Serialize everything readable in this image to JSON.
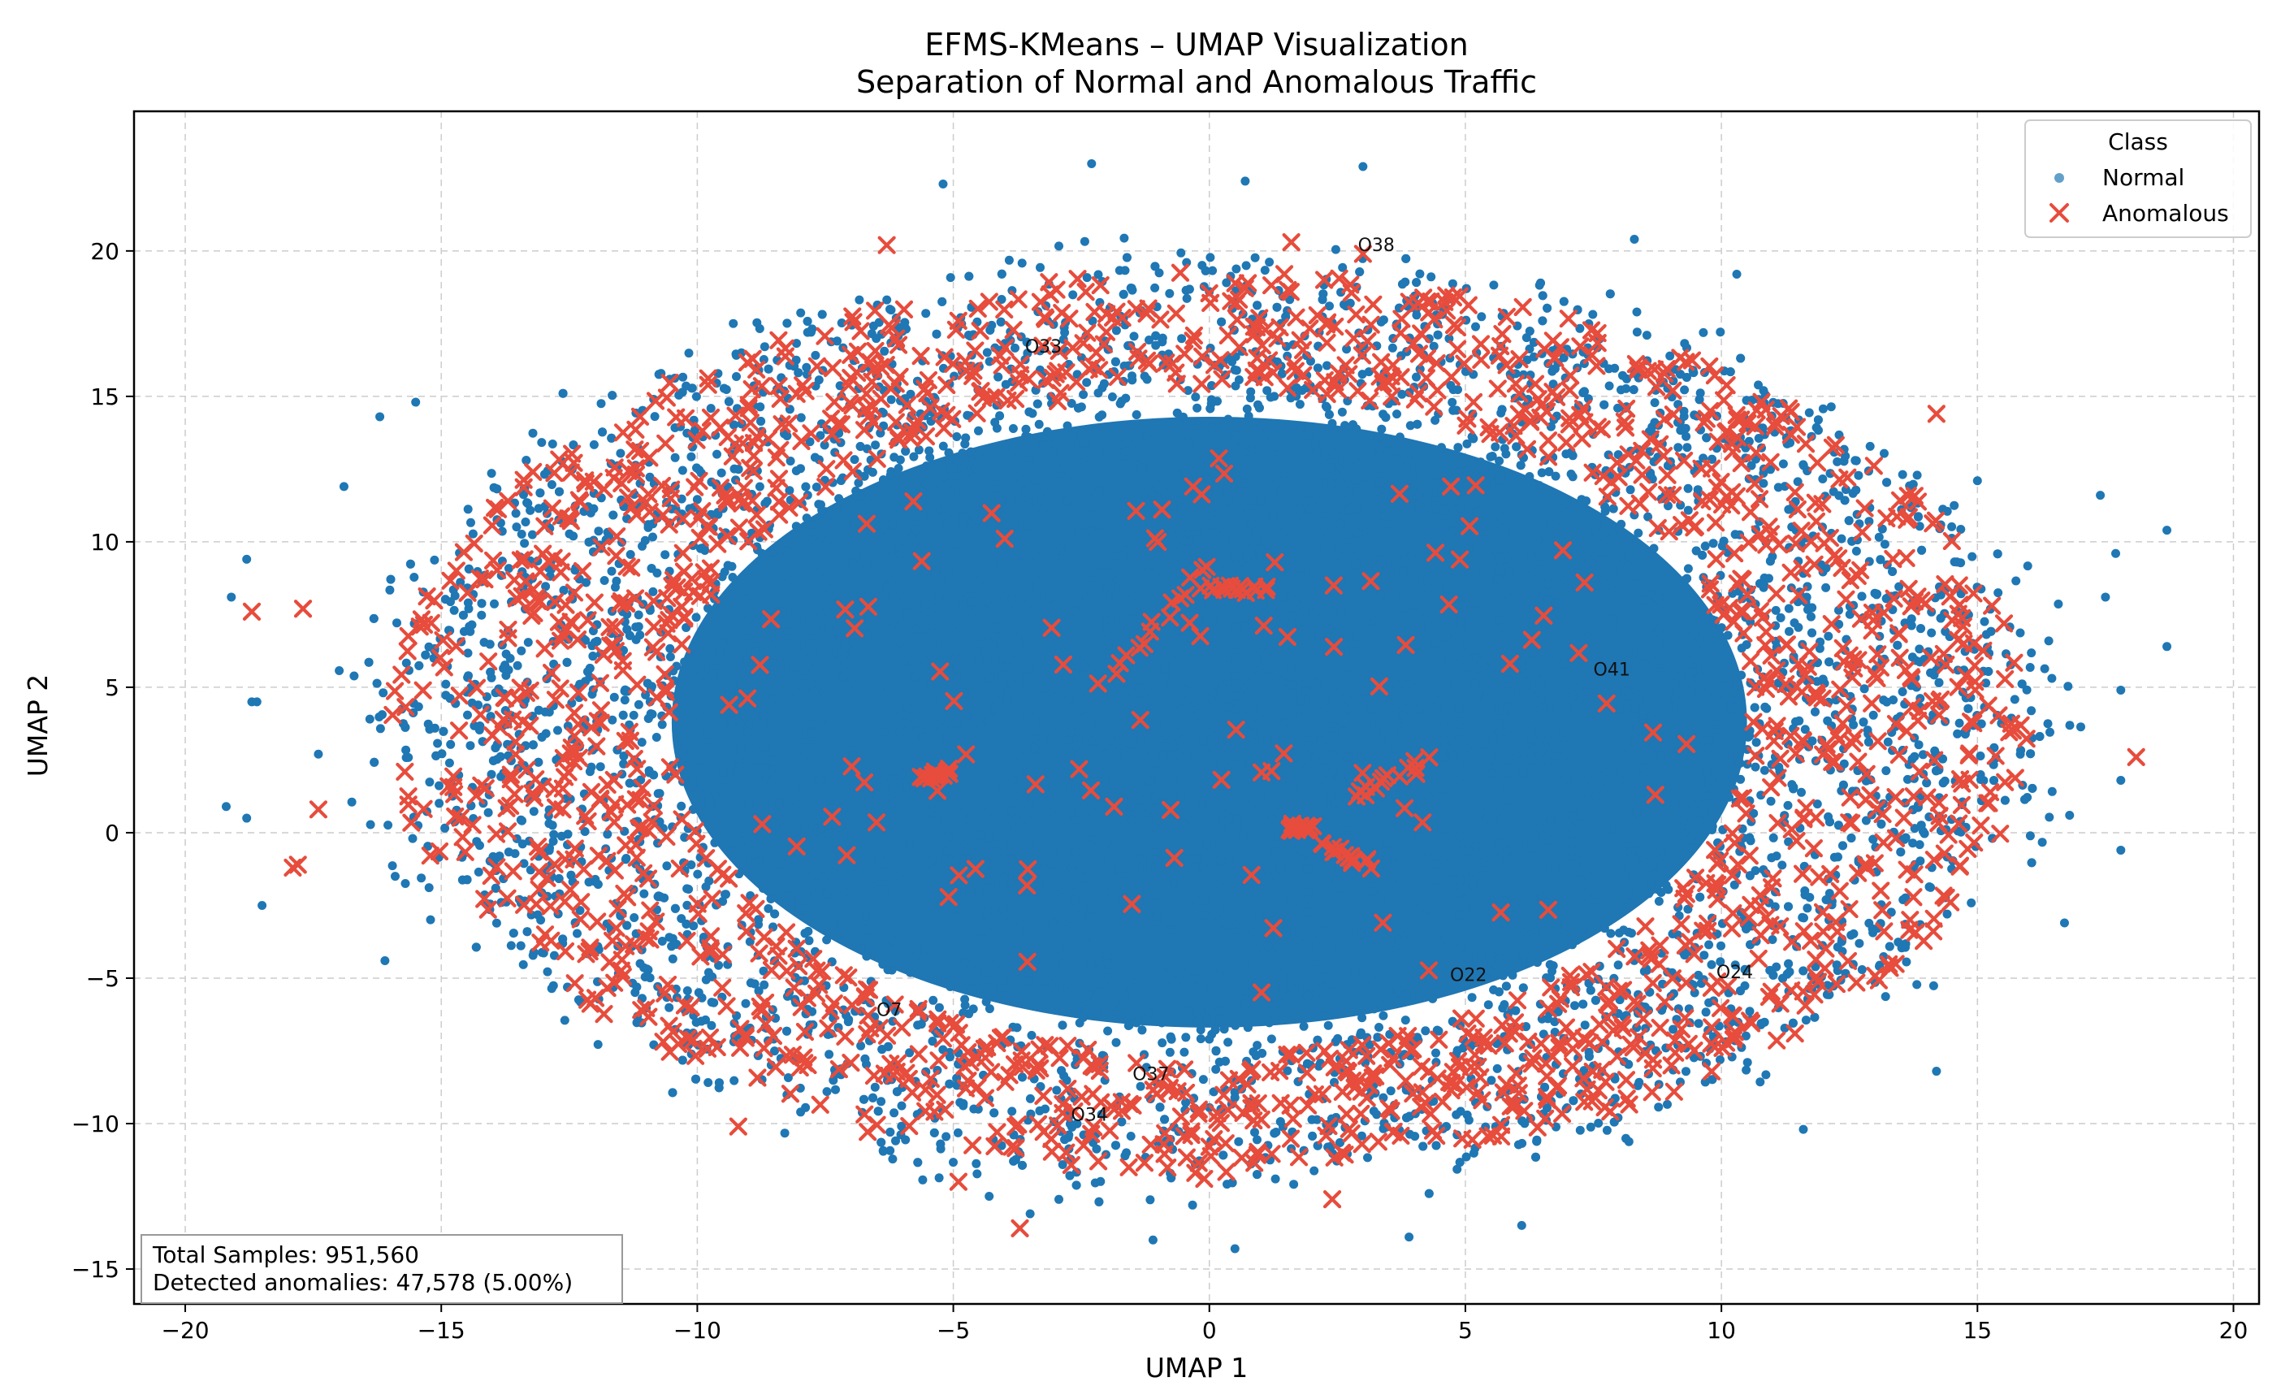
{
  "chart_data": {
    "type": "scatter",
    "title": "EFMS-KMeans – UMAP Visualization",
    "subtitle": "Separation of Normal and Anomalous Traffic",
    "xlabel": "UMAP 1",
    "ylabel": "UMAP 2",
    "xlim": [
      -21,
      20.5
    ],
    "ylim": [
      -16.2,
      24.8
    ],
    "x_ticks": [
      -20,
      -15,
      -10,
      -5,
      0,
      5,
      10,
      15,
      20
    ],
    "y_ticks": [
      -15,
      -10,
      -5,
      0,
      5,
      10,
      15,
      20
    ],
    "grid": true,
    "legend": {
      "title": "Class",
      "placement": "top-right",
      "entries": [
        {
          "name": "Normal",
          "marker": "dot",
          "color": "#1f77b4"
        },
        {
          "name": "Anomalous",
          "marker": "x",
          "color": "#e74c3c"
        }
      ]
    },
    "series": [
      {
        "name": "Normal",
        "color": "#1f77b4",
        "distribution": {
          "center": [
            0,
            3.8
          ],
          "rx": 16.5,
          "ry": 16.2,
          "dense_rx": 10.5,
          "dense_ry": 10.5
        },
        "outliers": [
          [
            -19.1,
            8.1
          ],
          [
            -18.8,
            9.4
          ],
          [
            -18.7,
            4.5
          ],
          [
            -18.6,
            4.5
          ],
          [
            -19.2,
            0.9
          ],
          [
            -18.8,
            0.5
          ],
          [
            -18.5,
            -2.5
          ],
          [
            -17.4,
            2.7
          ],
          [
            -16.9,
            11.9
          ],
          [
            -16.2,
            14.3
          ],
          [
            -15.5,
            14.8
          ],
          [
            -15.9,
            -1.5
          ],
          [
            -16.1,
            -4.4
          ],
          [
            -5.2,
            22.3
          ],
          [
            -2.3,
            23.0
          ],
          [
            0.7,
            22.4
          ],
          [
            3.0,
            22.9
          ],
          [
            8.3,
            20.4
          ],
          [
            10.3,
            19.2
          ],
          [
            15.0,
            12.1
          ],
          [
            17.4,
            11.6
          ],
          [
            17.7,
            9.6
          ],
          [
            17.5,
            8.1
          ],
          [
            17.8,
            4.9
          ],
          [
            18.7,
            10.4
          ],
          [
            18.7,
            6.4
          ],
          [
            17.8,
            1.8
          ],
          [
            16.8,
            0.6
          ],
          [
            17.8,
            -0.6
          ],
          [
            16.7,
            -3.1
          ],
          [
            14.2,
            -8.2
          ],
          [
            11.6,
            -10.2
          ],
          [
            6.1,
            -13.5
          ],
          [
            3.9,
            -13.9
          ],
          [
            0.5,
            -14.3
          ],
          [
            -1.1,
            -14.0
          ],
          [
            -3.5,
            -13.1
          ],
          [
            -4.3,
            -12.5
          ]
        ]
      },
      {
        "name": "Anomalous",
        "color": "#e74c3c",
        "distribution": {
          "ring_center": [
            0,
            3.8
          ],
          "ring_rx": [
            10.5,
            16.0
          ],
          "ring_ry": [
            11.5,
            15.5
          ]
        },
        "outliers": [
          [
            -18.7,
            7.6
          ],
          [
            -17.7,
            7.7
          ],
          [
            -17.4,
            0.8
          ],
          [
            -17.8,
            -1.1
          ],
          [
            -17.9,
            -1.2
          ],
          [
            18.1,
            2.6
          ],
          [
            14.2,
            14.4
          ],
          [
            1.6,
            20.3
          ],
          [
            -6.3,
            20.2
          ],
          [
            -4.9,
            -12.0
          ],
          [
            -3.7,
            -13.6
          ],
          [
            2.4,
            -12.6
          ],
          [
            -0.1,
            -11.9
          ],
          [
            -9.2,
            -10.1
          ],
          [
            3.0,
            19.9
          ]
        ],
        "streaks": [
          {
            "from": [
              -2.0,
              5.2
            ],
            "to": [
              0.0,
              9.2
            ]
          },
          {
            "from": [
              2.8,
              1.2
            ],
            "to": [
              4.2,
              2.5
            ]
          },
          {
            "from": [
              2.2,
              -0.4
            ],
            "to": [
              3.1,
              -1.2
            ]
          },
          {
            "from": [
              0.0,
              8.4
            ],
            "to": [
              1.1,
              8.4
            ]
          },
          {
            "from": [
              -5.6,
              1.9
            ],
            "to": [
              -5.0,
              2.1
            ]
          },
          {
            "from": [
              1.5,
              0.1
            ],
            "to": [
              2.0,
              0.2
            ]
          }
        ]
      }
    ],
    "annotations": [
      {
        "text": "O38",
        "x": 2.9,
        "y": 20.0
      },
      {
        "text": "O33",
        "x": -3.6,
        "y": 16.5
      },
      {
        "text": "O41",
        "x": 7.5,
        "y": 5.4
      },
      {
        "text": "O22",
        "x": 4.7,
        "y": -5.1
      },
      {
        "text": "O24",
        "x": 9.9,
        "y": -5.0
      },
      {
        "text": "O7",
        "x": -6.5,
        "y": -6.3
      },
      {
        "text": "O37",
        "x": -1.5,
        "y": -8.5
      },
      {
        "text": "O34",
        "x": -2.7,
        "y": -9.9
      }
    ],
    "stats_box": {
      "placement": "bottom-left",
      "lines": [
        "Total Samples: 951,560",
        "Detected anomalies:  47,578 (5.00%)"
      ]
    }
  }
}
